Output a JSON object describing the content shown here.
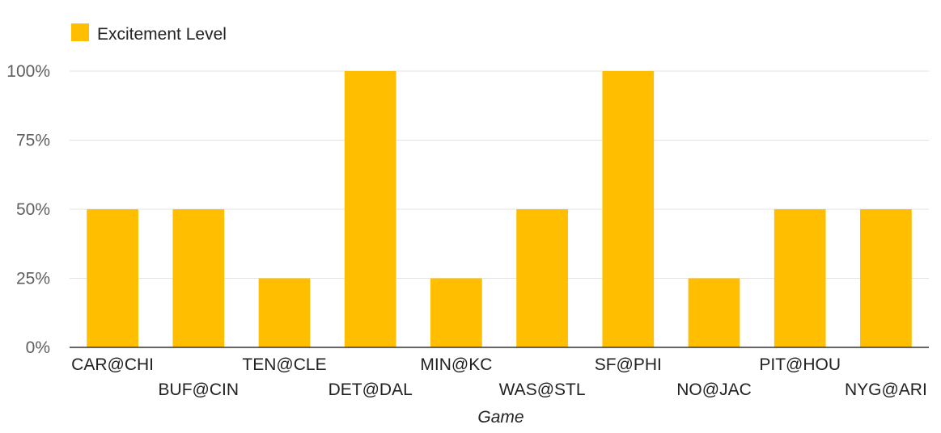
{
  "chart_data": {
    "type": "bar",
    "categories": [
      "CAR@CHI",
      "BUF@CIN",
      "TEN@CLE",
      "DET@DAL",
      "MIN@KC",
      "WAS@STL",
      "SF@PHI",
      "NO@JAC",
      "PIT@HOU",
      "NYG@ARI"
    ],
    "series": [
      {
        "name": "Excitement Level",
        "values": [
          50,
          50,
          25,
          100,
          25,
          50,
          100,
          25,
          50,
          50
        ],
        "color": "#ffbf00"
      }
    ],
    "y_ticks": [
      "0%",
      "25%",
      "50%",
      "75%",
      "100%"
    ],
    "ylim": [
      0,
      100
    ],
    "xlabel": "Game",
    "ylabel": "",
    "legend_position": "top-left",
    "grid": true,
    "colors": {
      "bar": "#ffbf00",
      "grid": "#e3e3e3",
      "baseline": "#333333"
    }
  }
}
